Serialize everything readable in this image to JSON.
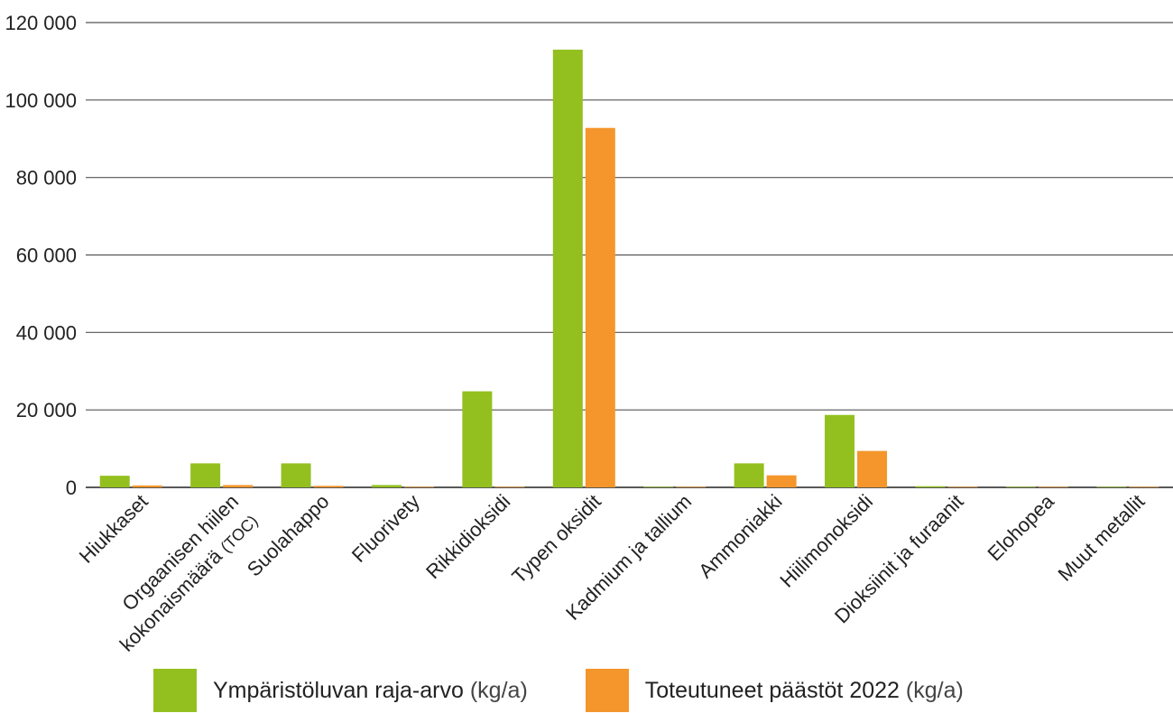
{
  "chart_data": {
    "type": "bar",
    "categories": [
      [
        "Hiukkaset"
      ],
      [
        "Orgaanisen hiilen",
        "kokonaismäärä (TOC)"
      ],
      [
        "Suolahappo"
      ],
      [
        "Fluorivety"
      ],
      [
        "Rikkidioksidi"
      ],
      [
        "Typen oksidit"
      ],
      [
        "Kadmium ja tallium"
      ],
      [
        "Ammoniakki"
      ],
      [
        "Hiilimonoksidi"
      ],
      [
        "Dioksiinit ja furaanit"
      ],
      [
        "Elohopea"
      ],
      [
        "Muut metallit"
      ]
    ],
    "series": [
      {
        "name": "Ympäristöluvan raja-arvo",
        "unit": "(kg/a)",
        "color": "#93c01f",
        "values": [
          3000,
          6200,
          6200,
          600,
          24800,
          113000,
          100,
          6200,
          18700,
          300,
          30,
          100
        ]
      },
      {
        "name": "Toteutuneet päästöt 2022",
        "unit": "(kg/a)",
        "color": "#f4962b",
        "values": [
          500,
          600,
          400,
          50,
          100,
          92800,
          20,
          3100,
          9400,
          50,
          10,
          20
        ]
      }
    ],
    "yticks": [
      0,
      20000,
      40000,
      60000,
      80000,
      100000,
      120000
    ],
    "ytick_labels": [
      "0",
      "20 000",
      "40 000",
      "60 000",
      "80 000",
      "100 000",
      "120 000"
    ],
    "ylim": [
      0,
      120000
    ],
    "grid": true,
    "legend_position": "bottom",
    "title": "",
    "xlabel": "",
    "ylabel": ""
  }
}
